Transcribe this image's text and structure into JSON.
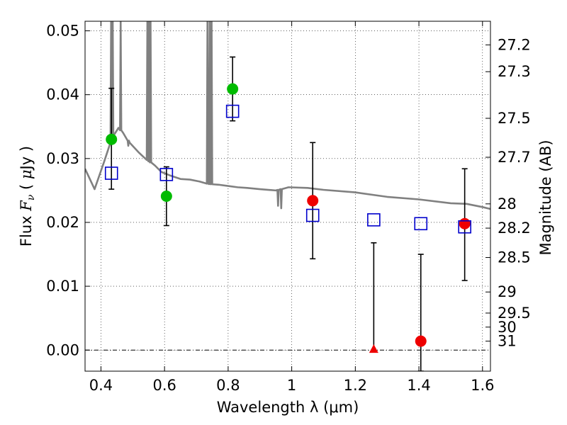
{
  "chart_data": {
    "type": "scatter",
    "xlabel": "Wavelength  λ (μm)",
    "ylabel_parts": [
      "Flux  ",
      "F",
      "ν",
      "  ( ",
      "μ",
      "Jy )"
    ],
    "y2label": "Magnitude (AB)",
    "xlim": [
      0.35,
      1.625
    ],
    "ylim": [
      -0.0033,
      0.0515
    ],
    "grid": true,
    "x_ticks": [
      {
        "value": 0.4,
        "label": "0.4"
      },
      {
        "value": 0.6,
        "label": "0.6"
      },
      {
        "value": 0.8,
        "label": "0.8"
      },
      {
        "value": 1.0,
        "label": "1"
      },
      {
        "value": 1.2,
        "label": "1.2"
      },
      {
        "value": 1.4,
        "label": "1.4"
      },
      {
        "value": 1.6,
        "label": "1.6"
      }
    ],
    "y_ticks": [
      {
        "value": 0.0,
        "label": "0.00"
      },
      {
        "value": 0.01,
        "label": "0.01"
      },
      {
        "value": 0.02,
        "label": "0.02"
      },
      {
        "value": 0.03,
        "label": "0.03"
      },
      {
        "value": 0.04,
        "label": "0.04"
      },
      {
        "value": 0.05,
        "label": "0.05"
      }
    ],
    "magnitude_ticks": [
      {
        "label": "27.2",
        "flux": 0.0478
      },
      {
        "label": "27.3",
        "flux": 0.0436
      },
      {
        "label": "27.5",
        "flux": 0.0363
      },
      {
        "label": "27.7",
        "flux": 0.0302
      },
      {
        "label": "28",
        "flux": 0.0229
      },
      {
        "label": "28.2",
        "flux": 0.0191
      },
      {
        "label": "28.5",
        "flux": 0.0145
      },
      {
        "label": "29",
        "flux": 0.0091
      },
      {
        "label": "29.5",
        "flux": 0.0058
      },
      {
        "label": "30",
        "flux": 0.0036
      },
      {
        "label": "31",
        "flux": 0.0014
      }
    ],
    "template_spectrum": {
      "color": "#808080",
      "x": [
        0.35,
        0.38,
        0.41,
        0.44,
        0.455,
        0.47,
        0.49,
        0.52,
        0.55,
        0.57,
        0.59,
        0.62,
        0.65,
        0.68,
        0.71,
        0.74,
        0.77,
        0.8,
        0.83,
        0.86,
        0.9,
        0.95,
        0.99,
        1.05,
        1.1,
        1.2,
        1.3,
        1.4,
        1.5,
        1.55,
        1.6,
        1.625
      ],
      "y": [
        0.0284,
        0.0252,
        0.0295,
        0.0336,
        0.0348,
        0.034,
        0.0325,
        0.0309,
        0.0296,
        0.0289,
        0.0279,
        0.0273,
        0.0268,
        0.0267,
        0.0264,
        0.026,
        0.0259,
        0.0257,
        0.0255,
        0.0254,
        0.0252,
        0.025,
        0.0255,
        0.0254,
        0.0251,
        0.0247,
        0.024,
        0.0236,
        0.023,
        0.0229,
        0.0224,
        0.0221
      ],
      "emission_lines": [
        {
          "x": 0.432,
          "peak": 0.0515
        },
        {
          "x": 0.437,
          "peak": 0.0515
        },
        {
          "x": 0.462,
          "peak": 0.0515
        },
        {
          "x": 0.486,
          "peak": 0.032
        },
        {
          "x": 0.546,
          "peak": 0.0515
        },
        {
          "x": 0.551,
          "peak": 0.0515
        },
        {
          "x": 0.556,
          "peak": 0.0515
        },
        {
          "x": 0.735,
          "peak": 0.0515
        },
        {
          "x": 0.742,
          "peak": 0.0515
        },
        {
          "x": 0.748,
          "peak": 0.0515
        }
      ],
      "absorption_lines": [
        {
          "x": 0.957,
          "dip": 0.0226
        },
        {
          "x": 0.967,
          "dip": 0.0222
        }
      ]
    },
    "series": [
      {
        "marker": "circle",
        "color": "#00bb00",
        "points": [
          {
            "x": 0.433,
            "y": 0.033,
            "err_lo": 0.0252,
            "err_hi": 0.041
          },
          {
            "x": 0.606,
            "y": 0.0241,
            "err_lo": 0.0195,
            "err_hi": 0.0287
          },
          {
            "x": 0.814,
            "y": 0.0409,
            "err_lo": 0.0359,
            "err_hi": 0.0459
          }
        ]
      },
      {
        "marker": "circle",
        "color": "#ee0000",
        "points": [
          {
            "x": 1.066,
            "y": 0.0234,
            "err_lo": 0.0143,
            "err_hi": 0.0325
          },
          {
            "x": 1.406,
            "y": 0.0014,
            "err_lo": -0.0033,
            "err_hi": 0.015
          },
          {
            "x": 1.544,
            "y": 0.0198,
            "err_lo": 0.0109,
            "err_hi": 0.0284
          }
        ]
      },
      {
        "marker": "triangle",
        "color": "#ee0000",
        "points": [
          {
            "x": 1.258,
            "y": 0.0,
            "err_lo": 0.0,
            "err_hi": 0.0168
          }
        ]
      },
      {
        "marker": "square-open",
        "color": "#0000cc",
        "points": [
          {
            "x": 0.433,
            "y": 0.0277
          },
          {
            "x": 0.606,
            "y": 0.0275
          },
          {
            "x": 0.814,
            "y": 0.0374
          },
          {
            "x": 1.066,
            "y": 0.0211
          },
          {
            "x": 1.258,
            "y": 0.0204
          },
          {
            "x": 1.406,
            "y": 0.0198
          },
          {
            "x": 1.544,
            "y": 0.0193
          }
        ]
      }
    ]
  }
}
